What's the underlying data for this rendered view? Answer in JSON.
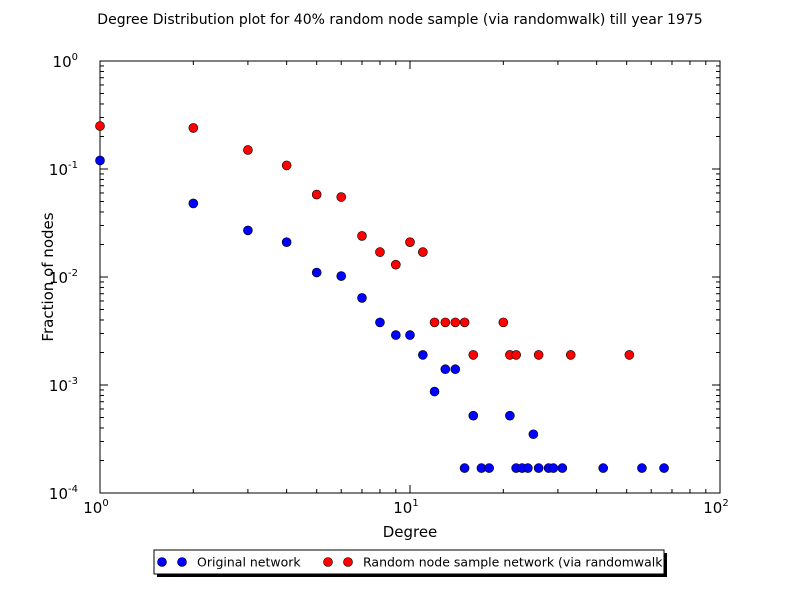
{
  "chart_data": {
    "type": "scatter",
    "title": "Degree Distribution plot for 40% random node sample (via randomwalk) till year 1975",
    "xlabel": "Degree",
    "ylabel": "Fraction of nodes",
    "xscale": "log",
    "yscale": "log",
    "xlim": [
      1,
      100
    ],
    "ylim": [
      0.0001,
      1
    ],
    "grid": false,
    "legend_position": "bottom-center (outside plot)",
    "x_ticks": [
      {
        "value": 1,
        "base": "10",
        "exp": "0"
      },
      {
        "value": 10,
        "base": "10",
        "exp": "1"
      },
      {
        "value": 100,
        "base": "10",
        "exp": "2"
      }
    ],
    "y_ticks": [
      {
        "value": 1,
        "base": "10",
        "exp": "0"
      },
      {
        "value": 0.1,
        "base": "10",
        "exp": "-1"
      },
      {
        "value": 0.01,
        "base": "10",
        "exp": "-2"
      },
      {
        "value": 0.001,
        "base": "10",
        "exp": "-3"
      },
      {
        "value": 0.0001,
        "base": "10",
        "exp": "-4"
      }
    ],
    "series": [
      {
        "name": "Original network",
        "color": "#0000ff",
        "points": [
          [
            1,
            0.12
          ],
          [
            2,
            0.048
          ],
          [
            3,
            0.027
          ],
          [
            4,
            0.021
          ],
          [
            5,
            0.011
          ],
          [
            6,
            0.0102
          ],
          [
            7,
            0.0064
          ],
          [
            8,
            0.0038
          ],
          [
            9,
            0.0029
          ],
          [
            10,
            0.0029
          ],
          [
            11,
            0.0019
          ],
          [
            12,
            0.00087
          ],
          [
            13,
            0.0014
          ],
          [
            14,
            0.0014
          ],
          [
            15,
            0.00017
          ],
          [
            16,
            0.00052
          ],
          [
            17,
            0.00017
          ],
          [
            18,
            0.00017
          ],
          [
            21,
            0.00052
          ],
          [
            22,
            0.00017
          ],
          [
            23,
            0.00017
          ],
          [
            24,
            0.00017
          ],
          [
            25,
            0.00035
          ],
          [
            26,
            0.00017
          ],
          [
            28,
            0.00017
          ],
          [
            29,
            0.00017
          ],
          [
            31,
            0.00017
          ],
          [
            42,
            0.00017
          ],
          [
            56,
            0.00017
          ],
          [
            66,
            0.00017
          ]
        ]
      },
      {
        "name": "Random node sample network (via randomwalk)",
        "color": "#ff0000",
        "points": [
          [
            1,
            0.25
          ],
          [
            2,
            0.24
          ],
          [
            3,
            0.15
          ],
          [
            4,
            0.108
          ],
          [
            5,
            0.058
          ],
          [
            6,
            0.055
          ],
          [
            7,
            0.024
          ],
          [
            8,
            0.017
          ],
          [
            9,
            0.013
          ],
          [
            10,
            0.021
          ],
          [
            11,
            0.017
          ],
          [
            12,
            0.0038
          ],
          [
            13,
            0.0038
          ],
          [
            14,
            0.0038
          ],
          [
            15,
            0.0038
          ],
          [
            16,
            0.0019
          ],
          [
            20,
            0.0038
          ],
          [
            21,
            0.0019
          ],
          [
            22,
            0.0019
          ],
          [
            26,
            0.0019
          ],
          [
            33,
            0.0019
          ],
          [
            51,
            0.0019
          ]
        ]
      }
    ]
  }
}
